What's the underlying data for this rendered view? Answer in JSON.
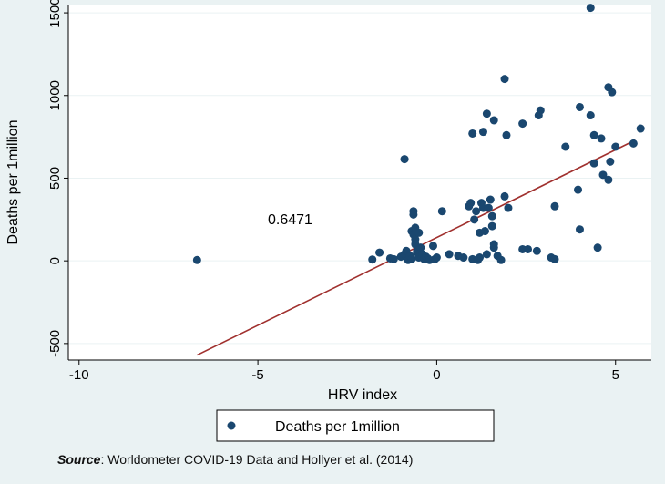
{
  "chart_data": {
    "type": "scatter",
    "xlabel": "HRV index",
    "ylabel": "Deaths per 1million",
    "xlim": [
      -10.3,
      6.0
    ],
    "ylim": [
      -600,
      1550
    ],
    "xticks": [
      -10,
      -5,
      0,
      5
    ],
    "yticks": [
      -500,
      0,
      500,
      1000,
      1500
    ],
    "annotation": "0.6471",
    "grid": "horizontal",
    "legend_position": "bottom",
    "colors": {
      "points": "#1A476F",
      "fit_line": "#A0302E",
      "background": "#EAF2F3"
    },
    "series": [
      {
        "name": "Deaths per 1million",
        "points": [
          [
            -6.7,
            5
          ],
          [
            -1.8,
            8
          ],
          [
            -1.6,
            50
          ],
          [
            -1.3,
            15
          ],
          [
            -1.2,
            10
          ],
          [
            -1.0,
            25
          ],
          [
            -0.9,
            615
          ],
          [
            -0.9,
            40
          ],
          [
            -0.85,
            60
          ],
          [
            -0.8,
            5
          ],
          [
            -0.75,
            30
          ],
          [
            -0.7,
            10
          ],
          [
            -0.7,
            180
          ],
          [
            -0.65,
            160
          ],
          [
            -0.65,
            300
          ],
          [
            -0.65,
            280
          ],
          [
            -0.6,
            200
          ],
          [
            -0.6,
            130
          ],
          [
            -0.6,
            100
          ],
          [
            -0.55,
            60
          ],
          [
            -0.55,
            50
          ],
          [
            -0.5,
            170
          ],
          [
            -0.5,
            20
          ],
          [
            -0.45,
            80
          ],
          [
            -0.4,
            40
          ],
          [
            -0.35,
            10
          ],
          [
            -0.3,
            25
          ],
          [
            -0.25,
            15
          ],
          [
            -0.2,
            5
          ],
          [
            -0.1,
            90
          ],
          [
            -0.05,
            10
          ],
          [
            0.0,
            20
          ],
          [
            0.15,
            300
          ],
          [
            0.35,
            40
          ],
          [
            0.6,
            30
          ],
          [
            0.75,
            20
          ],
          [
            0.9,
            330
          ],
          [
            0.95,
            350
          ],
          [
            1.0,
            10
          ],
          [
            1.0,
            770
          ],
          [
            1.05,
            250
          ],
          [
            1.1,
            300
          ],
          [
            1.15,
            5
          ],
          [
            1.2,
            170
          ],
          [
            1.2,
            20
          ],
          [
            1.25,
            350
          ],
          [
            1.3,
            780
          ],
          [
            1.3,
            320
          ],
          [
            1.35,
            180
          ],
          [
            1.4,
            40
          ],
          [
            1.4,
            890
          ],
          [
            1.45,
            320
          ],
          [
            1.5,
            370
          ],
          [
            1.55,
            270
          ],
          [
            1.55,
            210
          ],
          [
            1.6,
            850
          ],
          [
            1.6,
            80
          ],
          [
            1.6,
            100
          ],
          [
            1.7,
            30
          ],
          [
            1.8,
            5
          ],
          [
            1.9,
            1100
          ],
          [
            1.9,
            390
          ],
          [
            1.95,
            760
          ],
          [
            2.0,
            320
          ],
          [
            2.4,
            830
          ],
          [
            2.4,
            70
          ],
          [
            2.55,
            70
          ],
          [
            2.8,
            60
          ],
          [
            2.85,
            880
          ],
          [
            2.9,
            910
          ],
          [
            3.2,
            20
          ],
          [
            3.3,
            10
          ],
          [
            3.3,
            330
          ],
          [
            3.6,
            690
          ],
          [
            3.95,
            430
          ],
          [
            4.0,
            930
          ],
          [
            4.0,
            190
          ],
          [
            4.3,
            1530
          ],
          [
            4.3,
            880
          ],
          [
            4.4,
            590
          ],
          [
            4.4,
            760
          ],
          [
            4.5,
            80
          ],
          [
            4.6,
            740
          ],
          [
            4.65,
            520
          ],
          [
            4.8,
            1050
          ],
          [
            4.8,
            490
          ],
          [
            4.85,
            600
          ],
          [
            4.9,
            1020
          ],
          [
            5.0,
            690
          ],
          [
            5.5,
            710
          ],
          [
            5.7,
            800
          ]
        ]
      }
    ],
    "fit": {
      "name": "fitted values",
      "x": [
        -6.7,
        5.55
      ],
      "y": [
        -570,
        730
      ]
    }
  },
  "footer": {
    "source_label": "Source",
    "source_text": ": Worldometer COVID-19 Data and Hollyer et al. (2014)"
  }
}
